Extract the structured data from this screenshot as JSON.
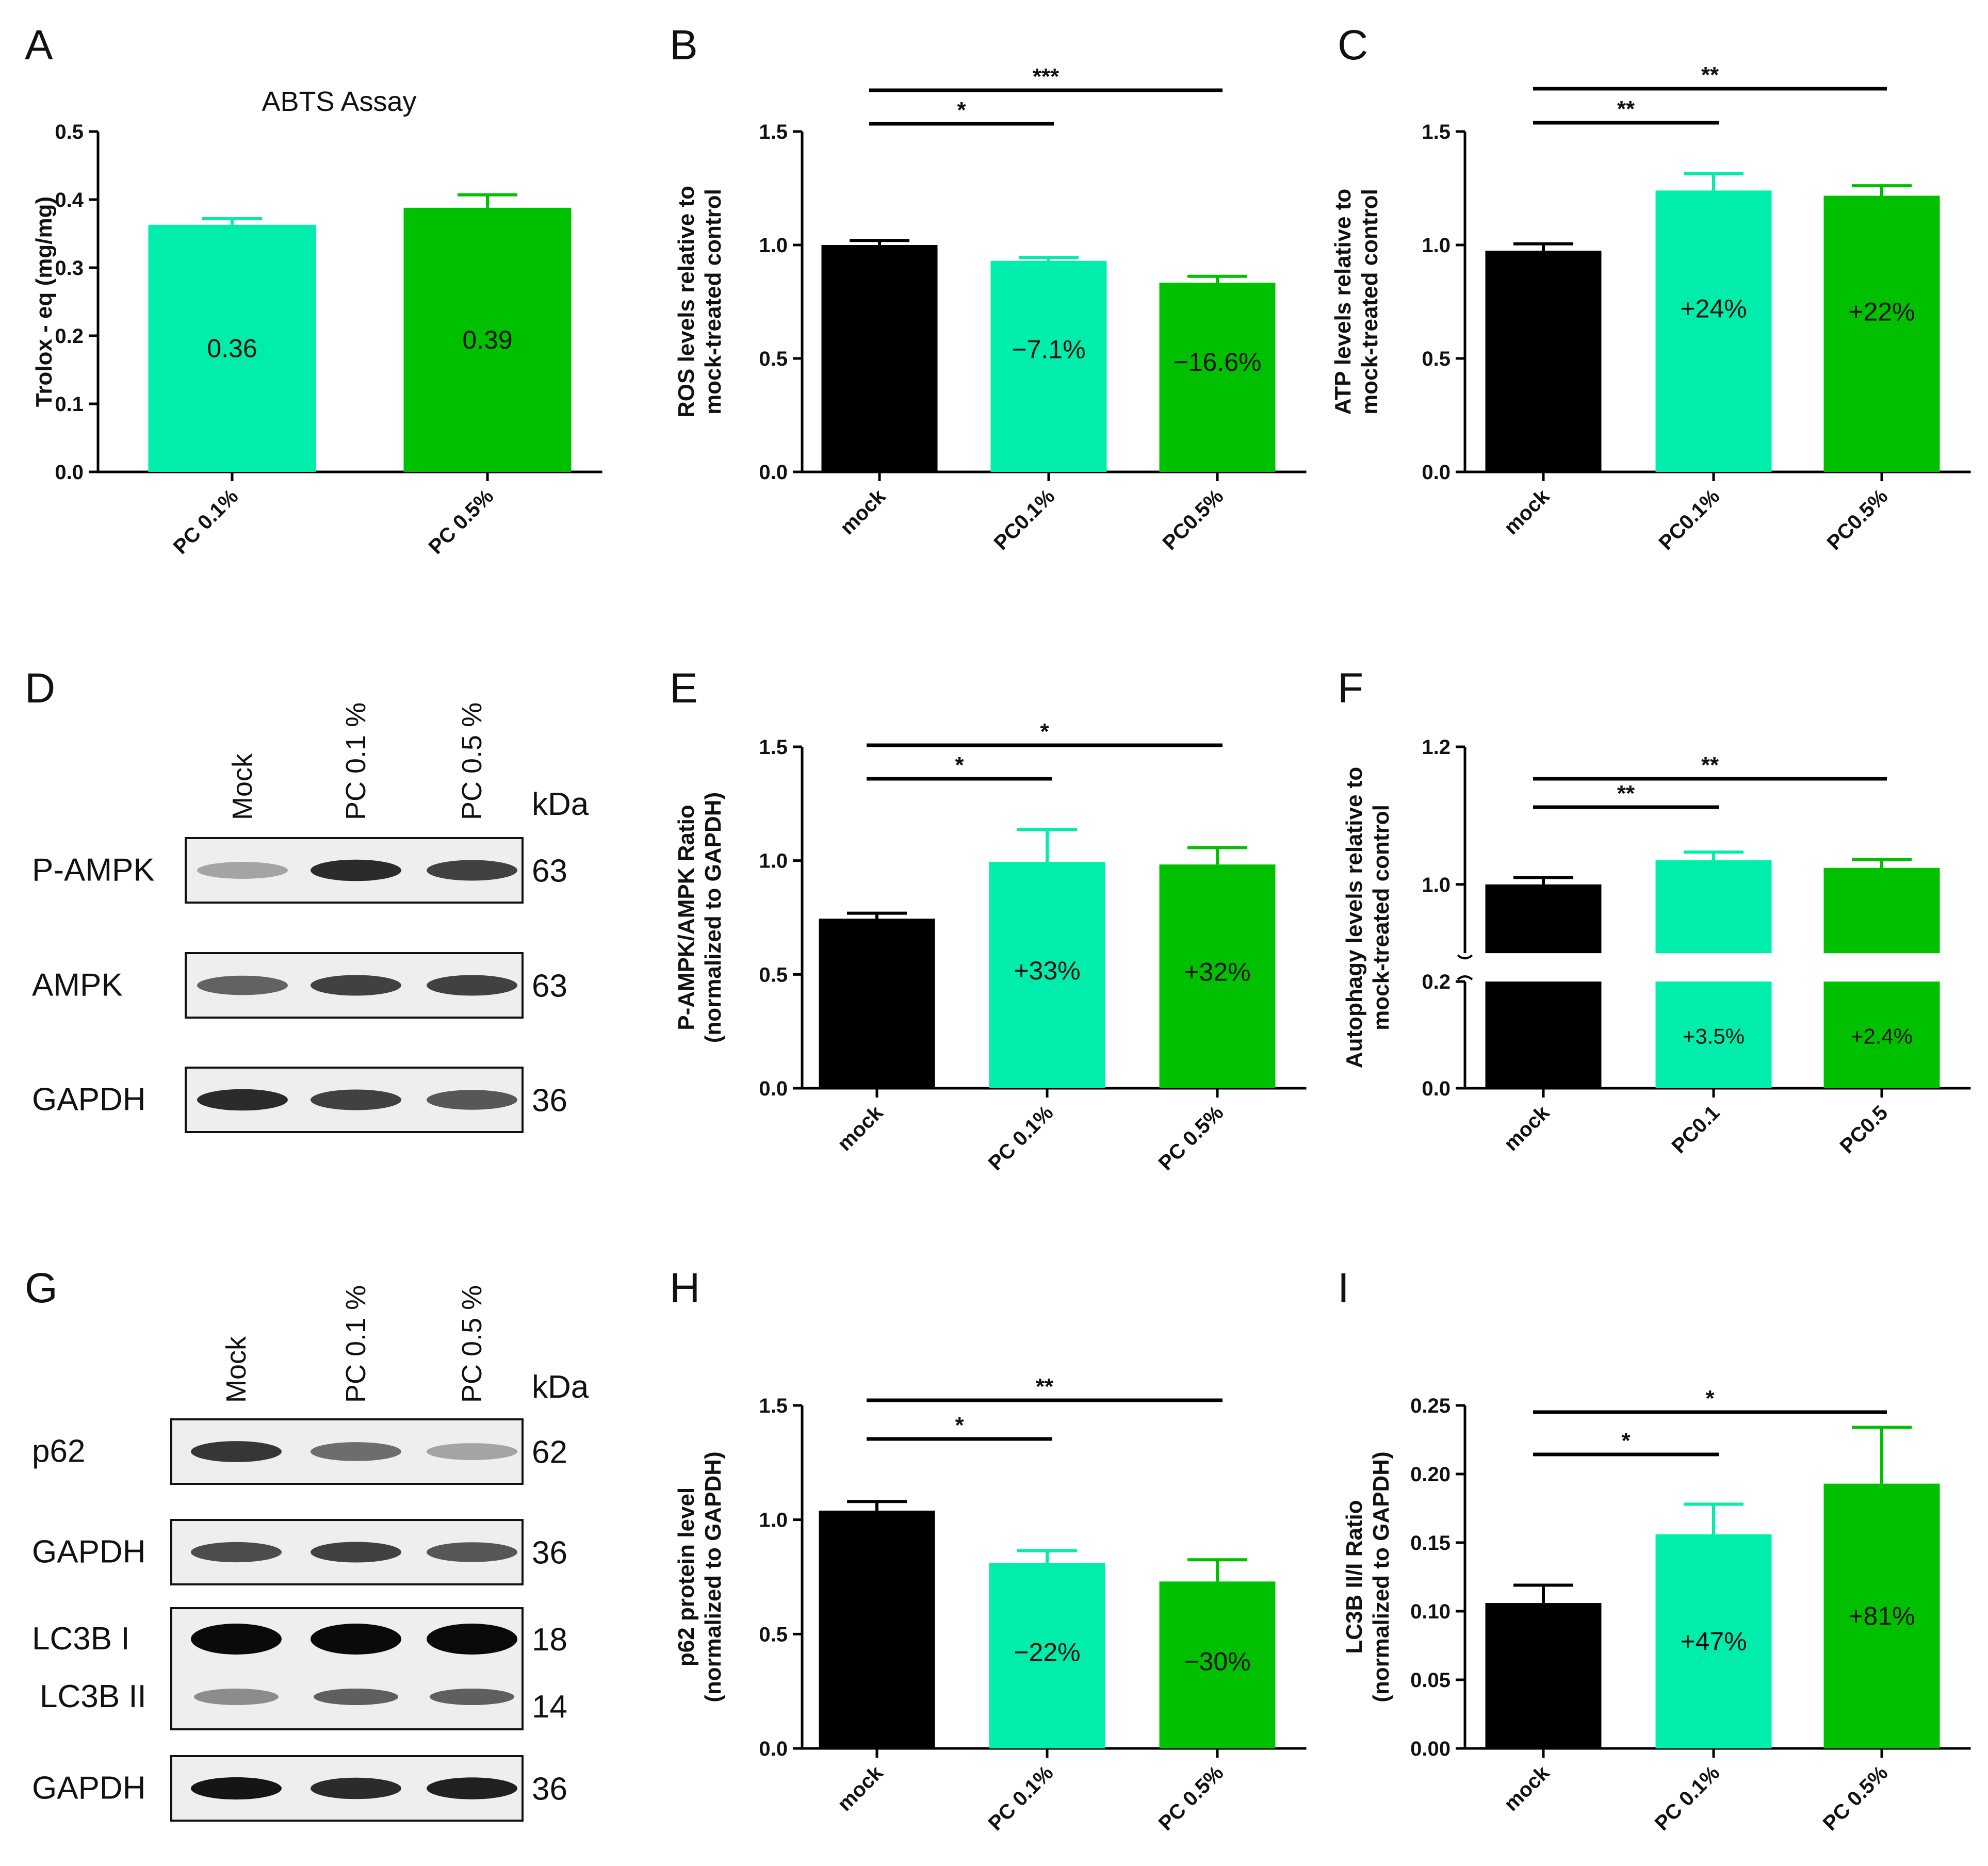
{
  "colors": {
    "mock": "#000000",
    "pc01": "#00EDAB",
    "pc05": "#00C000",
    "axis": "#000000"
  },
  "chart_data": [
    {
      "panel": "A",
      "type": "bar",
      "title": "ABTS Assay",
      "ylabel": [
        "Trolox - eq (mg/mg)"
      ],
      "categories": [
        "PC 0.1%",
        "PC 0.5%"
      ],
      "values": [
        0.363,
        0.388
      ],
      "errors": [
        0.009,
        0.019
      ],
      "bar_labels": [
        "0.36",
        "0.39"
      ],
      "bar_colors": [
        "pc01",
        "pc05"
      ],
      "label_fracs": [
        0.5,
        0.5
      ],
      "ylim": [
        0,
        0.5
      ],
      "ticks": [
        0.0,
        0.1,
        0.2,
        0.3,
        0.4,
        0.5
      ],
      "tick_labels": [
        "0.0",
        "0.1",
        "0.2",
        "0.3",
        "0.4",
        "0.5"
      ],
      "significance": []
    },
    {
      "panel": "B",
      "type": "bar",
      "ylabel": [
        "ROS levels relative to",
        "mock-treated control"
      ],
      "categories": [
        "mock",
        "PC0.1%",
        "PC0.5%"
      ],
      "values": [
        1.0,
        0.93,
        0.834
      ],
      "errors": [
        0.02,
        0.015,
        0.028
      ],
      "bar_labels": [
        "",
        "−7.1%",
        "−16.6%"
      ],
      "bar_colors": [
        "mock",
        "pc01",
        "pc05"
      ],
      "label_fracs": [
        0.5,
        0.58,
        0.58
      ],
      "ylim": [
        0,
        1.5
      ],
      "ticks": [
        0.0,
        0.5,
        1.0,
        1.5
      ],
      "tick_labels": [
        "0.0",
        "0.5",
        "1.0",
        "1.5"
      ],
      "significance": [
        {
          "from": 0,
          "to": 1,
          "label": "*",
          "level": 0
        },
        {
          "from": 0,
          "to": 2,
          "label": "***",
          "level": 1
        }
      ]
    },
    {
      "panel": "C",
      "type": "bar",
      "ylabel": [
        "ATP levels relative to",
        "mock-treated control"
      ],
      "categories": [
        "mock",
        "PC0.1%",
        "PC0.5%"
      ],
      "values": [
        0.975,
        1.24,
        1.217
      ],
      "errors": [
        0.03,
        0.074,
        0.044
      ],
      "bar_labels": [
        "",
        "+24%",
        "+22%"
      ],
      "bar_colors": [
        "mock",
        "pc01",
        "pc05"
      ],
      "label_fracs": [
        0.5,
        0.58,
        0.58
      ],
      "ylim": [
        0,
        1.5
      ],
      "ticks": [
        0.0,
        0.5,
        1.0,
        1.5
      ],
      "tick_labels": [
        "0.0",
        "0.5",
        "1.0",
        "1.5"
      ],
      "significance": [
        {
          "from": 0,
          "to": 1,
          "label": "**",
          "level": 0
        },
        {
          "from": 0,
          "to": 2,
          "label": "**",
          "level": 1
        }
      ]
    },
    {
      "panel": "E",
      "type": "bar",
      "ylabel": [
        "P-AMPK/AMPK Ratio",
        "(normalized to GAPDH)"
      ],
      "categories": [
        "mock",
        "PC 0.1%",
        "PC 0.5%"
      ],
      "values": [
        0.745,
        0.994,
        0.983
      ],
      "errors": [
        0.024,
        0.143,
        0.074
      ],
      "bar_labels": [
        "",
        "+33%",
        "+32%"
      ],
      "bar_colors": [
        "mock",
        "pc01",
        "pc05"
      ],
      "label_fracs": [
        0.5,
        0.52,
        0.52
      ],
      "ylim": [
        0,
        1.5
      ],
      "ticks": [
        0.0,
        0.5,
        1.0,
        1.5
      ],
      "tick_labels": [
        "0.0",
        "0.5",
        "1.0",
        "1.5"
      ],
      "significance": [
        {
          "from": 0,
          "to": 1,
          "label": "*",
          "level": 0
        },
        {
          "from": 0,
          "to": 2,
          "label": "*",
          "level": 1
        }
      ]
    },
    {
      "panel": "F",
      "type": "bar",
      "broken_axis": true,
      "ylabel": [
        "Autophagy levels relative to",
        "mock-treated control"
      ],
      "categories": [
        "mock",
        "PC0.1",
        "PC0.5"
      ],
      "values": [
        1.0,
        1.035,
        1.024
      ],
      "errors": [
        0.01,
        0.012,
        0.012
      ],
      "bar_labels": [
        "",
        "+3.5%",
        "+2.4%"
      ],
      "bar_colors": [
        "mock",
        "pc01",
        "pc05"
      ],
      "label_fracs": [
        0.5,
        0.5,
        0.5
      ],
      "ylim": [
        0,
        1.2
      ],
      "break": [
        0.2,
        0.9
      ],
      "ticks": [
        0.0,
        0.2,
        1.0,
        1.2
      ],
      "tick_labels": [
        "0.0",
        "0.2",
        "1.0",
        "1.2"
      ],
      "significance": [
        {
          "from": 0,
          "to": 1,
          "label": "**",
          "level": 0
        },
        {
          "from": 0,
          "to": 2,
          "label": "**",
          "level": 1
        }
      ]
    },
    {
      "panel": "H",
      "type": "bar",
      "ylabel": [
        "p62 protein level",
        "(normalized to GAPDH)"
      ],
      "categories": [
        "mock",
        "PC 0.1%",
        "PC 0.5%"
      ],
      "values": [
        1.04,
        0.81,
        0.73
      ],
      "errors": [
        0.04,
        0.055,
        0.095
      ],
      "bar_labels": [
        "",
        "−22%",
        "−30%"
      ],
      "bar_colors": [
        "mock",
        "pc01",
        "pc05"
      ],
      "label_fracs": [
        0.5,
        0.52,
        0.52
      ],
      "ylim": [
        0,
        1.5
      ],
      "ticks": [
        0.0,
        0.5,
        1.0,
        1.5
      ],
      "tick_labels": [
        "0.0",
        "0.5",
        "1.0",
        "1.5"
      ],
      "significance": [
        {
          "from": 0,
          "to": 1,
          "label": "*",
          "level": 0
        },
        {
          "from": 0,
          "to": 2,
          "label": "**",
          "level": 1
        }
      ]
    },
    {
      "panel": "I",
      "type": "bar",
      "ylabel": [
        "LC3B II/I Ratio",
        "(normalized to GAPDH)"
      ],
      "categories": [
        "mock",
        "PC 0.1%",
        "PC 0.5%"
      ],
      "values": [
        0.106,
        0.156,
        0.193
      ],
      "errors": [
        0.013,
        0.022,
        0.041
      ],
      "bar_labels": [
        "",
        "+47%",
        "+81%"
      ],
      "bar_colors": [
        "mock",
        "pc01",
        "pc05"
      ],
      "label_fracs": [
        0.5,
        0.5,
        0.5
      ],
      "ylim": [
        0,
        0.25
      ],
      "ticks": [
        0.0,
        0.05,
        0.1,
        0.15,
        0.2,
        0.25
      ],
      "tick_labels": [
        "0.00",
        "0.05",
        "0.10",
        "0.15",
        "0.20",
        "0.25"
      ],
      "significance": [
        {
          "from": 0,
          "to": 1,
          "label": "*",
          "level": 0
        },
        {
          "from": 0,
          "to": 2,
          "label": "*",
          "level": 1
        }
      ]
    }
  ],
  "blots": [
    {
      "panel": "D",
      "lanes": [
        "Mock",
        "PC 0.1 %",
        "PC 0.5 %"
      ],
      "kda_label": "kDa",
      "rows": [
        {
          "name": "P-AMPK",
          "kda": "63",
          "intensity": [
            0.3,
            0.85,
            0.75
          ]
        },
        {
          "name": "AMPK",
          "kda": "63",
          "intensity": [
            0.6,
            0.75,
            0.75
          ]
        },
        {
          "name": "GAPDH",
          "kda": "36",
          "intensity": [
            0.85,
            0.75,
            0.65
          ]
        }
      ]
    },
    {
      "panel": "G",
      "lanes": [
        "Mock",
        "PC 0.1 %",
        "PC 0.5 %"
      ],
      "kda_label": "kDa",
      "rows": [
        {
          "name": "p62",
          "kda": "62",
          "intensity": [
            0.8,
            0.55,
            0.3
          ]
        },
        {
          "name": "GAPDH",
          "kda": "36",
          "intensity": [
            0.7,
            0.75,
            0.65
          ]
        },
        {
          "name": "LC3B I",
          "kda": "18",
          "intensity": [
            1.0,
            1.0,
            1.0
          ],
          "double": true,
          "name2": "LC3B II",
          "kda2": "14",
          "intensity2": [
            0.5,
            0.75,
            0.75
          ]
        },
        {
          "name": "GAPDH",
          "kda": "36",
          "intensity": [
            0.95,
            0.85,
            0.9
          ]
        }
      ]
    }
  ]
}
